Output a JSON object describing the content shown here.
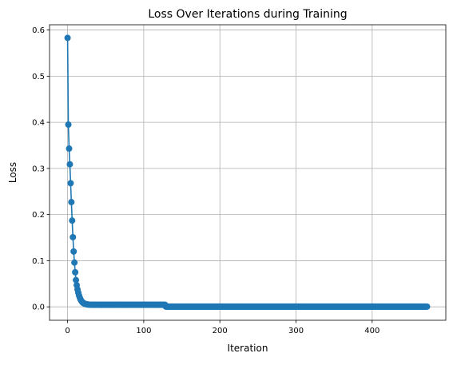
{
  "chart_data": {
    "type": "line",
    "title": "Loss Over Iterations during Training",
    "xlabel": "Iteration",
    "ylabel": "Loss",
    "xlim": [
      -23.7,
      496.7
    ],
    "ylim": [
      -0.0291,
      0.6114
    ],
    "xticks": [
      0,
      100,
      200,
      300,
      400
    ],
    "yticks": [
      0.0,
      0.1,
      0.2,
      0.3,
      0.4,
      0.5,
      0.6
    ],
    "xtick_labels": [
      "0",
      "100",
      "200",
      "300",
      "400"
    ],
    "ytick_labels": [
      "0.0",
      "0.1",
      "0.2",
      "0.3",
      "0.4",
      "0.5",
      "0.6"
    ],
    "grid": true,
    "marker": "circle",
    "color": "#1f77b4",
    "head_points": [
      [
        0,
        0.583
      ],
      [
        1,
        0.395
      ],
      [
        2,
        0.343
      ],
      [
        3,
        0.309
      ],
      [
        4,
        0.268
      ],
      [
        5,
        0.227
      ],
      [
        6,
        0.187
      ],
      [
        7,
        0.151
      ],
      [
        8,
        0.12
      ],
      [
        9,
        0.096
      ],
      [
        10,
        0.075
      ],
      [
        11,
        0.058
      ],
      [
        12,
        0.047
      ],
      [
        13,
        0.038
      ],
      [
        14,
        0.031
      ],
      [
        15,
        0.025
      ],
      [
        16,
        0.02
      ],
      [
        17,
        0.016
      ],
      [
        18,
        0.013
      ],
      [
        19,
        0.011
      ],
      [
        20,
        0.009
      ],
      [
        21,
        0.008
      ],
      [
        22,
        0.007
      ],
      [
        23,
        0.0065
      ],
      [
        24,
        0.006
      ],
      [
        25,
        0.0055
      ],
      [
        26,
        0.005
      ],
      [
        27,
        0.005
      ],
      [
        28,
        0.0048
      ],
      [
        29,
        0.0047
      ],
      [
        30,
        0.0046
      ]
    ],
    "tail_segments": [
      {
        "from": 31,
        "to": 128,
        "value": 0.0045
      },
      {
        "from": 129,
        "to": 472,
        "value": 0.0005
      }
    ]
  }
}
